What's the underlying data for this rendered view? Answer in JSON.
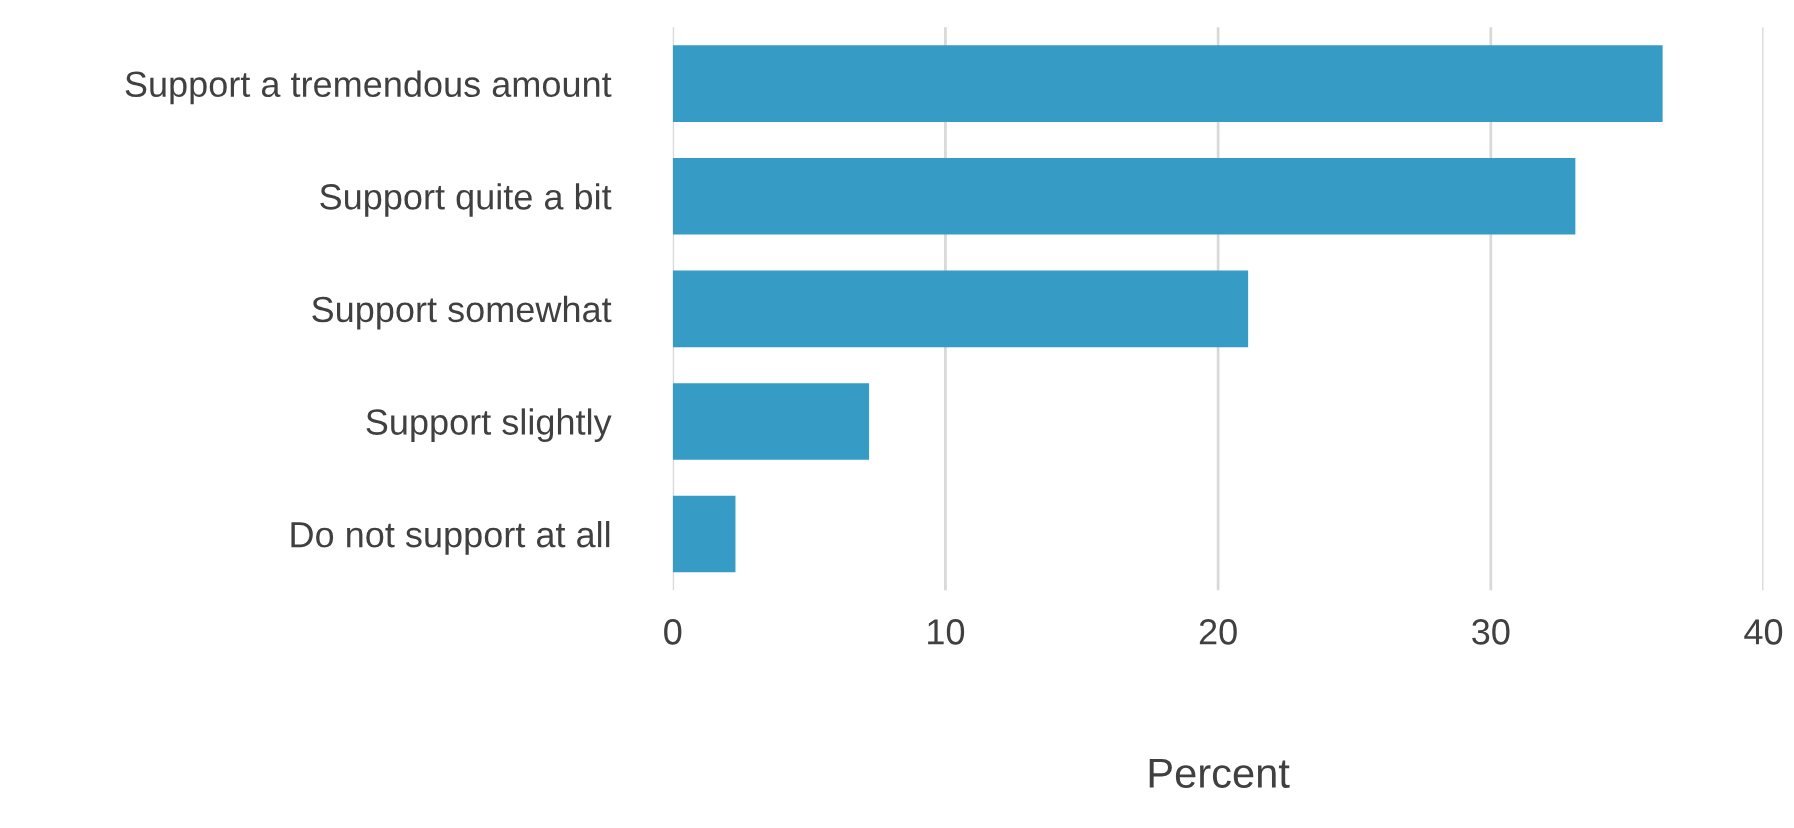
{
  "chart_data": {
    "type": "bar",
    "orientation": "horizontal",
    "xlabel": "Percent",
    "categories": [
      "Support a tremendous amount",
      "Support quite a bit",
      "Support somewhat",
      "Support slightly",
      "Do not support at all"
    ],
    "values": [
      36.3,
      33.1,
      21.1,
      7.2,
      2.3
    ],
    "color": "#369bc5",
    "xlim": [
      0,
      40
    ],
    "xticks": [
      0,
      10,
      20,
      30,
      40
    ],
    "grid": "x",
    "legend": false
  }
}
